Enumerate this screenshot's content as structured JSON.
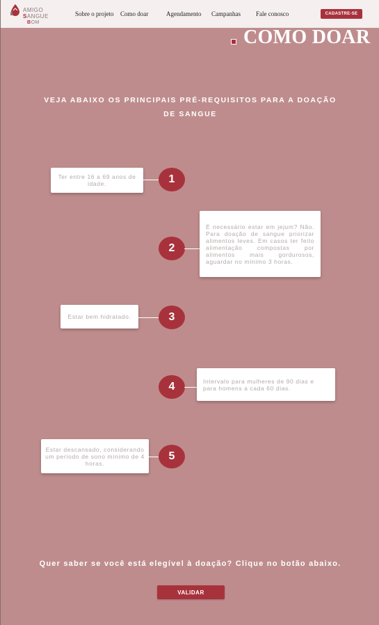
{
  "header": {
    "logo": {
      "line1": "AMIGO",
      "line2_accent": "S",
      "line2_rest": "ANGUE",
      "line3_accent": "B",
      "line3_rest": "OM"
    },
    "nav": [
      "Sobre o projeto",
      "Como doar",
      "Agendamento",
      "Campanhas",
      "Fale conosco"
    ],
    "cta_label": "CADASTRE-SE"
  },
  "page": {
    "title": "COMO DOAR",
    "subtitle": "VEJA ABAIXO OS PRINCIPAIS PRÉ-REQUISITOS PARA A DOAÇÃO DE SANGUE"
  },
  "steps": [
    {
      "number": "1",
      "text": "Ter entre 16 a 69 anos de idade."
    },
    {
      "number": "2",
      "text": "É necessário estar em jejum? Não. Para doação de sangue priorizar alimentos leves. Em casos ter feito alimentação compostas por alimentos mais gordurosos, aguardar no mínimo 3 horas."
    },
    {
      "number": "3",
      "text": "Estar bem hidratado."
    },
    {
      "number": "4",
      "text": "Intervalo para mulheres de 90 dias e para homens a cada 60 dias."
    },
    {
      "number": "5",
      "text": "Estar descansado, considerando um período de sono mínimo de 4 horas."
    }
  ],
  "footer": {
    "question": "Quer saber se você está elegível à doação? Clique no botão abaixo.",
    "button_label": "VALIDAR"
  },
  "colors": {
    "background": "#bf8c8d",
    "accent": "#a8323c",
    "header": "#f5efef"
  }
}
